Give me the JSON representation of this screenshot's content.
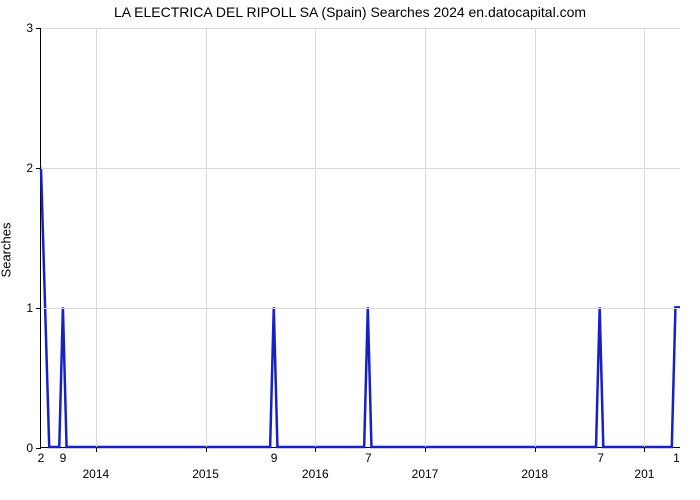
{
  "chart": {
    "type": "line",
    "title": "LA ELECTRICA DEL RIPOLL SA (Spain) Searches 2024 en.datocapital.com",
    "title_fontsize": 14,
    "ylabel": "Searches",
    "label_fontsize": 13,
    "background_color": "#ffffff",
    "grid_color": "#d9d9d9",
    "axis_color": "#000000",
    "line_color": "#1720c5",
    "line_width": 2.5,
    "ylim": [
      0,
      3
    ],
    "yticks": [
      0,
      1,
      2,
      3
    ],
    "xlim_months": [
      0,
      70
    ],
    "x_year_labels": [
      {
        "label": "2014",
        "month": 6
      },
      {
        "label": "2015",
        "month": 18
      },
      {
        "label": "2016",
        "month": 30
      },
      {
        "label": "2017",
        "month": 42
      },
      {
        "label": "2018",
        "month": 54
      },
      {
        "label": "201",
        "month": 66
      }
    ],
    "x_minor_labels": [
      {
        "label": "2",
        "month": 0.0
      },
      {
        "label": "9",
        "month": 2.4
      },
      {
        "label": "9",
        "month": 25.5
      },
      {
        "label": "7",
        "month": 35.8
      },
      {
        "label": "7",
        "month": 61.2
      },
      {
        "label": "1",
        "month": 69.5
      }
    ],
    "data_points": [
      {
        "x": 0.0,
        "y": 2.0
      },
      {
        "x": 0.9,
        "y": 0.0
      },
      {
        "x": 2.0,
        "y": 0.0
      },
      {
        "x": 2.4,
        "y": 1.0
      },
      {
        "x": 2.8,
        "y": 0.0
      },
      {
        "x": 25.1,
        "y": 0.0
      },
      {
        "x": 25.5,
        "y": 1.0
      },
      {
        "x": 25.9,
        "y": 0.0
      },
      {
        "x": 35.4,
        "y": 0.0
      },
      {
        "x": 35.8,
        "y": 1.0
      },
      {
        "x": 36.2,
        "y": 0.0
      },
      {
        "x": 60.8,
        "y": 0.0
      },
      {
        "x": 61.2,
        "y": 1.0
      },
      {
        "x": 61.6,
        "y": 0.0
      },
      {
        "x": 69.1,
        "y": 0.0
      },
      {
        "x": 69.5,
        "y": 1.0
      },
      {
        "x": 70.0,
        "y": 1.0
      }
    ]
  }
}
